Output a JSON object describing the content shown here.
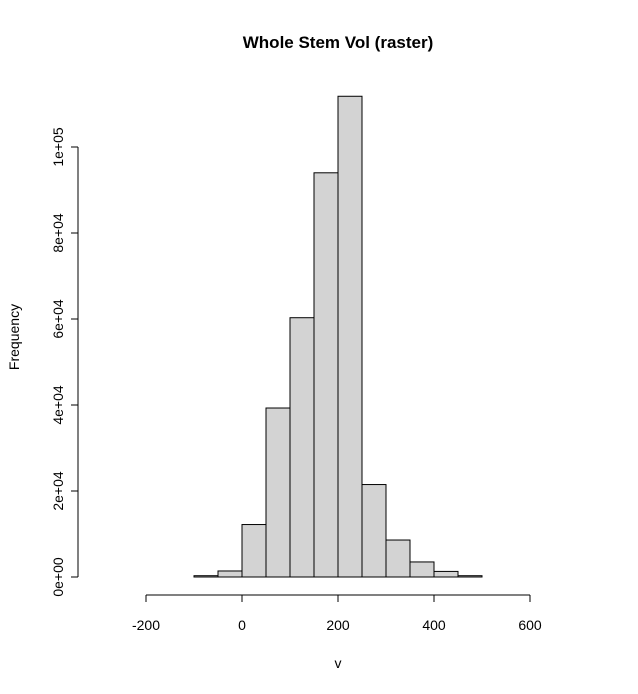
{
  "chart_data": {
    "type": "bar",
    "title": "Whole Stem Vol (raster)",
    "xlabel": "v",
    "ylabel": "Frequency",
    "bin_width": 50,
    "bins": [
      {
        "start": -300,
        "end": -250,
        "count": 0
      },
      {
        "start": -250,
        "end": -200,
        "count": 0
      },
      {
        "start": -200,
        "end": -150,
        "count": 0
      },
      {
        "start": -150,
        "end": -100,
        "count": 0
      },
      {
        "start": -100,
        "end": -50,
        "count": 300
      },
      {
        "start": -50,
        "end": 0,
        "count": 1400
      },
      {
        "start": 0,
        "end": 50,
        "count": 12200
      },
      {
        "start": 50,
        "end": 100,
        "count": 39300
      },
      {
        "start": 100,
        "end": 150,
        "count": 60300
      },
      {
        "start": 150,
        "end": 200,
        "count": 94000
      },
      {
        "start": 200,
        "end": 250,
        "count": 111800
      },
      {
        "start": 250,
        "end": 300,
        "count": 21500
      },
      {
        "start": 300,
        "end": 350,
        "count": 8600
      },
      {
        "start": 350,
        "end": 400,
        "count": 3500
      },
      {
        "start": 400,
        "end": 450,
        "count": 1300
      },
      {
        "start": 450,
        "end": 500,
        "count": 300
      },
      {
        "start": 500,
        "end": 550,
        "count": 0
      },
      {
        "start": 550,
        "end": 600,
        "count": 0
      },
      {
        "start": 600,
        "end": 650,
        "count": 0
      },
      {
        "start": 650,
        "end": 700,
        "count": 0
      }
    ],
    "xlim": [
      -300,
      700
    ],
    "ylim": [
      0,
      112000
    ],
    "x_ticks": [
      -200,
      0,
      200,
      400,
      600
    ],
    "x_tick_labels": [
      "-200",
      "0",
      "200",
      "400",
      "600"
    ],
    "y_ticks": [
      0,
      20000,
      40000,
      60000,
      80000,
      100000
    ],
    "y_tick_labels": [
      "0e+00",
      "2e+04",
      "4e+04",
      "6e+04",
      "8e+04",
      "1e+05"
    ],
    "grid": false,
    "bar_color": "#d3d3d3"
  }
}
